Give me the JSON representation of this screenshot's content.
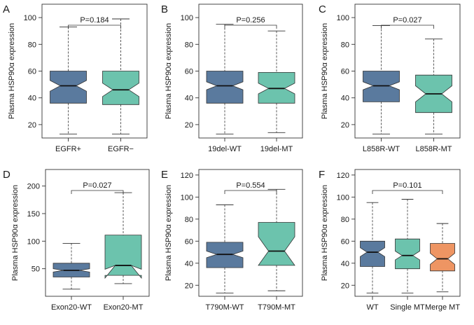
{
  "colors": {
    "blue": "#5a7a9e",
    "teal": "#6cc3ad",
    "orange": "#ee9563",
    "line": "#333333"
  },
  "chart_data": [
    {
      "type": "box",
      "label": "A",
      "ylabel": "Plasma HSP90α expression",
      "ylim": [
        10,
        110
      ],
      "yticks": [
        20,
        40,
        60,
        80,
        100
      ],
      "pvalue": "P=0.184",
      "boxes": [
        {
          "name": "EGFR+",
          "color": "blue",
          "min": 13,
          "q1": 36,
          "median": 49,
          "q3": 60,
          "max": 93,
          "notch_lo": 45,
          "notch_hi": 53
        },
        {
          "name": "EGFR−",
          "color": "teal",
          "min": 13,
          "q1": 35,
          "median": 46,
          "q3": 60,
          "max": 99,
          "notch_lo": 41,
          "notch_hi": 51
        }
      ]
    },
    {
      "type": "box",
      "label": "B",
      "ylabel": "Plasma HSP90α expression",
      "ylim": [
        10,
        110
      ],
      "yticks": [
        20,
        40,
        60,
        80,
        100
      ],
      "pvalue": "P=0.256",
      "boxes": [
        {
          "name": "19del-WT",
          "color": "blue",
          "min": 13,
          "q1": 36,
          "median": 49,
          "q3": 60,
          "max": 95,
          "notch_lo": 46,
          "notch_hi": 52
        },
        {
          "name": "19del-MT",
          "color": "teal",
          "min": 14,
          "q1": 36,
          "median": 47,
          "q3": 59,
          "max": 90,
          "notch_lo": 43,
          "notch_hi": 51
        }
      ]
    },
    {
      "type": "box",
      "label": "C",
      "ylabel": "Plasma HSP90α expression",
      "ylim": [
        10,
        110
      ],
      "yticks": [
        20,
        40,
        60,
        80,
        100
      ],
      "pvalue": "P=0.027",
      "boxes": [
        {
          "name": "L858R-WT",
          "color": "blue",
          "min": 13,
          "q1": 37,
          "median": 49,
          "q3": 60,
          "max": 94,
          "notch_lo": 46,
          "notch_hi": 52
        },
        {
          "name": "L858R-MT",
          "color": "teal",
          "min": 13,
          "q1": 29,
          "median": 43,
          "q3": 57,
          "max": 84,
          "notch_lo": 37,
          "notch_hi": 49
        }
      ]
    },
    {
      "type": "box",
      "label": "D",
      "ylabel": "Plasma HSP90α expression",
      "ylim": [
        0,
        230
      ],
      "yticks": [
        50,
        100,
        150,
        200
      ],
      "pvalue": "P=0.027",
      "boxes": [
        {
          "name": "Exon20-WT",
          "color": "blue",
          "min": 13,
          "q1": 35,
          "median": 47,
          "q3": 60,
          "max": 96,
          "notch_lo": 44,
          "notch_hi": 50
        },
        {
          "name": "Exon20-MT",
          "color": "teal",
          "min": 23,
          "q1": 38,
          "median": 56,
          "q3": 111,
          "max": 188,
          "notch_lo": 33,
          "notch_hi": 49
        }
      ]
    },
    {
      "type": "box",
      "label": "E",
      "ylabel": "Plasma HSP90α expression",
      "ylim": [
        10,
        125
      ],
      "yticks": [
        20,
        40,
        60,
        80,
        100,
        120
      ],
      "pvalue": "P=0.554",
      "boxes": [
        {
          "name": "T790M-WT",
          "color": "blue",
          "min": 13,
          "q1": 36,
          "median": 48,
          "q3": 59,
          "max": 93,
          "notch_lo": 45,
          "notch_hi": 51
        },
        {
          "name": "T790M-MT",
          "color": "teal",
          "min": 15,
          "q1": 38,
          "median": 51,
          "q3": 77,
          "max": 107,
          "notch_lo": 38,
          "notch_hi": 64
        }
      ]
    },
    {
      "type": "box",
      "label": "F",
      "ylabel": "Plasma HSP90α expression",
      "ylim": [
        10,
        125
      ],
      "yticks": [
        20,
        40,
        60,
        80,
        100,
        120
      ],
      "pvalue": "P=0.101",
      "boxes": [
        {
          "name": "WT",
          "color": "blue",
          "min": 13,
          "q1": 37,
          "median": 50,
          "q3": 60,
          "max": 95,
          "notch_lo": 46,
          "notch_hi": 54
        },
        {
          "name": "Single MT",
          "color": "teal",
          "min": 13,
          "q1": 35,
          "median": 47,
          "q3": 62,
          "max": 98,
          "notch_lo": 43,
          "notch_hi": 51
        },
        {
          "name": "Merge MT",
          "color": "orange",
          "min": 14,
          "q1": 33,
          "median": 44,
          "q3": 58,
          "max": 76,
          "notch_lo": 39,
          "notch_hi": 49
        }
      ]
    }
  ]
}
